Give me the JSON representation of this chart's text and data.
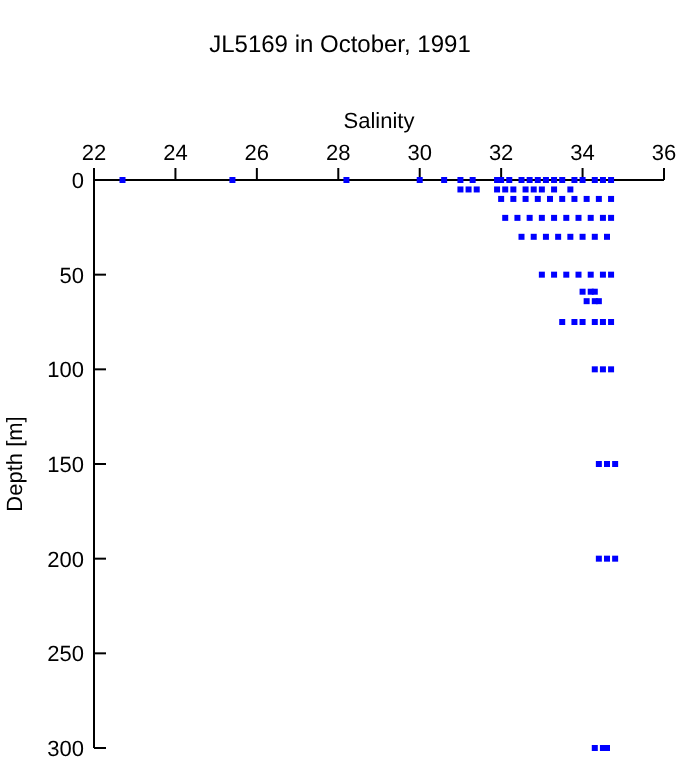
{
  "chart_data": {
    "type": "scatter",
    "title": "JL5169 in October, 1991",
    "xlabel": "Salinity",
    "ylabel": "Depth [m]",
    "xlim": [
      22,
      36
    ],
    "xticks": [
      22,
      24,
      26,
      28,
      30,
      32,
      34,
      36
    ],
    "ylim": [
      300,
      0
    ],
    "yticks": [
      0,
      50,
      100,
      150,
      200,
      250,
      300
    ],
    "marker": "square",
    "grid": false,
    "series": [
      {
        "color": "#0000ff",
        "x": [
          22.7,
          25.4,
          28.2,
          30.0,
          30.6,
          31.0,
          31.3,
          31.9,
          32.0,
          32.2,
          32.5,
          32.7,
          32.9,
          33.1,
          33.3,
          33.5,
          33.8,
          34.0,
          34.3,
          34.5,
          34.7,
          31.0,
          31.2,
          31.4,
          31.9,
          32.1,
          32.3,
          32.6,
          32.8,
          33.0,
          33.3,
          33.7,
          32.0,
          32.3,
          32.6,
          32.9,
          33.2,
          33.5,
          33.8,
          34.1,
          34.4,
          34.7,
          32.1,
          32.4,
          32.7,
          33.0,
          33.3,
          33.6,
          33.9,
          34.2,
          34.5,
          34.7,
          32.5,
          32.8,
          33.1,
          33.4,
          33.7,
          34.0,
          34.3,
          34.6,
          33.0,
          33.3,
          33.6,
          33.9,
          34.2,
          34.5,
          34.7,
          34.0,
          34.2,
          34.3,
          34.1,
          34.3,
          34.4,
          33.5,
          33.8,
          34.0,
          34.3,
          34.5,
          34.7,
          34.3,
          34.5,
          34.7,
          34.4,
          34.6,
          34.8,
          34.4,
          34.6,
          34.8,
          34.3,
          34.5,
          34.6
        ],
        "values": [
          0,
          0,
          0,
          0,
          0,
          0,
          0,
          0,
          0,
          0,
          0,
          0,
          0,
          0,
          0,
          0,
          0,
          0,
          0,
          0,
          0,
          5,
          5,
          5,
          5,
          5,
          5,
          5,
          5,
          5,
          5,
          5,
          10,
          10,
          10,
          10,
          10,
          10,
          10,
          10,
          10,
          10,
          20,
          20,
          20,
          20,
          20,
          20,
          20,
          20,
          20,
          20,
          30,
          30,
          30,
          30,
          30,
          30,
          30,
          30,
          50,
          50,
          50,
          50,
          50,
          50,
          50,
          59,
          59,
          59,
          64,
          64,
          64,
          75,
          75,
          75,
          75,
          75,
          75,
          100,
          100,
          100,
          150,
          150,
          150,
          200,
          200,
          200,
          300,
          300,
          300
        ]
      }
    ]
  }
}
